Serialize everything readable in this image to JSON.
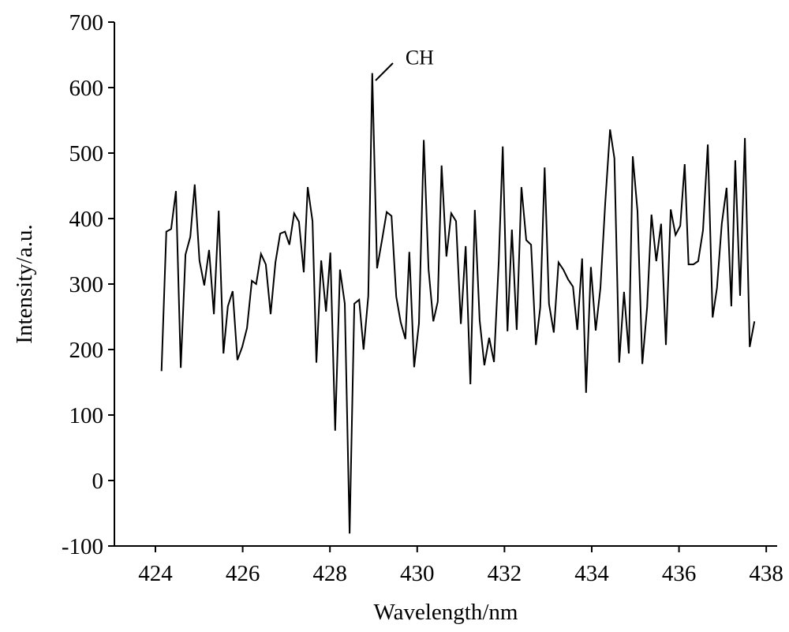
{
  "chart_data": {
    "type": "line",
    "xlabel": "Wavelength/nm",
    "ylabel": "Intensity/a.u.",
    "xlim": [
      423.06,
      438.25
    ],
    "xticks": [
      424,
      426,
      428,
      430,
      432,
      434,
      436,
      438
    ],
    "ylim": [
      -100,
      700
    ],
    "yticks": [
      -100,
      0,
      100,
      200,
      300,
      400,
      500,
      600,
      700
    ],
    "color": "#000000",
    "grid": false,
    "annotations": [
      {
        "text": "CH",
        "x": 428.97,
        "y": 622
      }
    ],
    "x": [
      424.14,
      424.25,
      424.36,
      424.47,
      424.58,
      424.69,
      424.8,
      424.9,
      425.01,
      425.12,
      425.23,
      425.34,
      425.45,
      425.56,
      425.66,
      425.77,
      425.88,
      425.99,
      426.1,
      426.21,
      426.31,
      426.42,
      426.53,
      426.64,
      426.75,
      426.86,
      426.97,
      427.07,
      427.18,
      427.29,
      427.4,
      427.49,
      427.6,
      427.69,
      427.8,
      427.91,
      428.01,
      428.12,
      428.23,
      428.34,
      428.45,
      428.56,
      428.67,
      428.77,
      428.88,
      428.97,
      429.08,
      429.19,
      429.3,
      429.41,
      429.52,
      429.62,
      429.73,
      429.82,
      429.93,
      430.04,
      430.15,
      430.26,
      430.37,
      430.47,
      430.56,
      430.67,
      430.78,
      430.89,
      431.0,
      431.11,
      431.22,
      431.32,
      431.43,
      431.54,
      431.65,
      431.76,
      431.87,
      431.96,
      432.07,
      432.17,
      432.28,
      432.39,
      432.5,
      432.61,
      432.72,
      432.82,
      432.92,
      433.02,
      433.13,
      433.24,
      433.35,
      433.46,
      433.57,
      433.67,
      433.78,
      433.87,
      433.98,
      434.09,
      434.2,
      434.31,
      434.42,
      434.52,
      434.63,
      434.74,
      434.85,
      434.94,
      435.05,
      435.16,
      435.27,
      435.37,
      435.48,
      435.59,
      435.7,
      435.81,
      435.92,
      436.03,
      436.13,
      436.22,
      436.33,
      436.44,
      436.55,
      436.66,
      436.77,
      436.87,
      436.98,
      437.09,
      437.2,
      437.29,
      437.4,
      437.51,
      437.62,
      437.73
    ],
    "values": [
      167,
      380,
      384,
      442,
      172,
      345,
      372,
      452,
      336,
      298,
      352,
      254,
      412,
      194,
      266,
      289,
      184,
      204,
      233,
      305,
      300,
      346,
      330,
      254,
      333,
      377,
      380,
      360,
      408,
      395,
      318,
      448,
      396,
      180,
      336,
      258,
      348,
      76,
      322,
      270,
      -81,
      270,
      276,
      200,
      282,
      622,
      324,
      366,
      410,
      404,
      281,
      242,
      216,
      349,
      173,
      240,
      520,
      322,
      243,
      273,
      481,
      342,
      408,
      396,
      239,
      358,
      147,
      413,
      245,
      176,
      218,
      181,
      336,
      510,
      228,
      383,
      230,
      448,
      367,
      360,
      207,
      264,
      478,
      270,
      226,
      333,
      322,
      307,
      296,
      230,
      339,
      134,
      326,
      229,
      294,
      424,
      536,
      492,
      180,
      288,
      194,
      495,
      411,
      178,
      265,
      406,
      335,
      392,
      207,
      414,
      375,
      389,
      483,
      330,
      330,
      335,
      382,
      513,
      249,
      294,
      392,
      447,
      266,
      489,
      282,
      523,
      204,
      243
    ]
  }
}
